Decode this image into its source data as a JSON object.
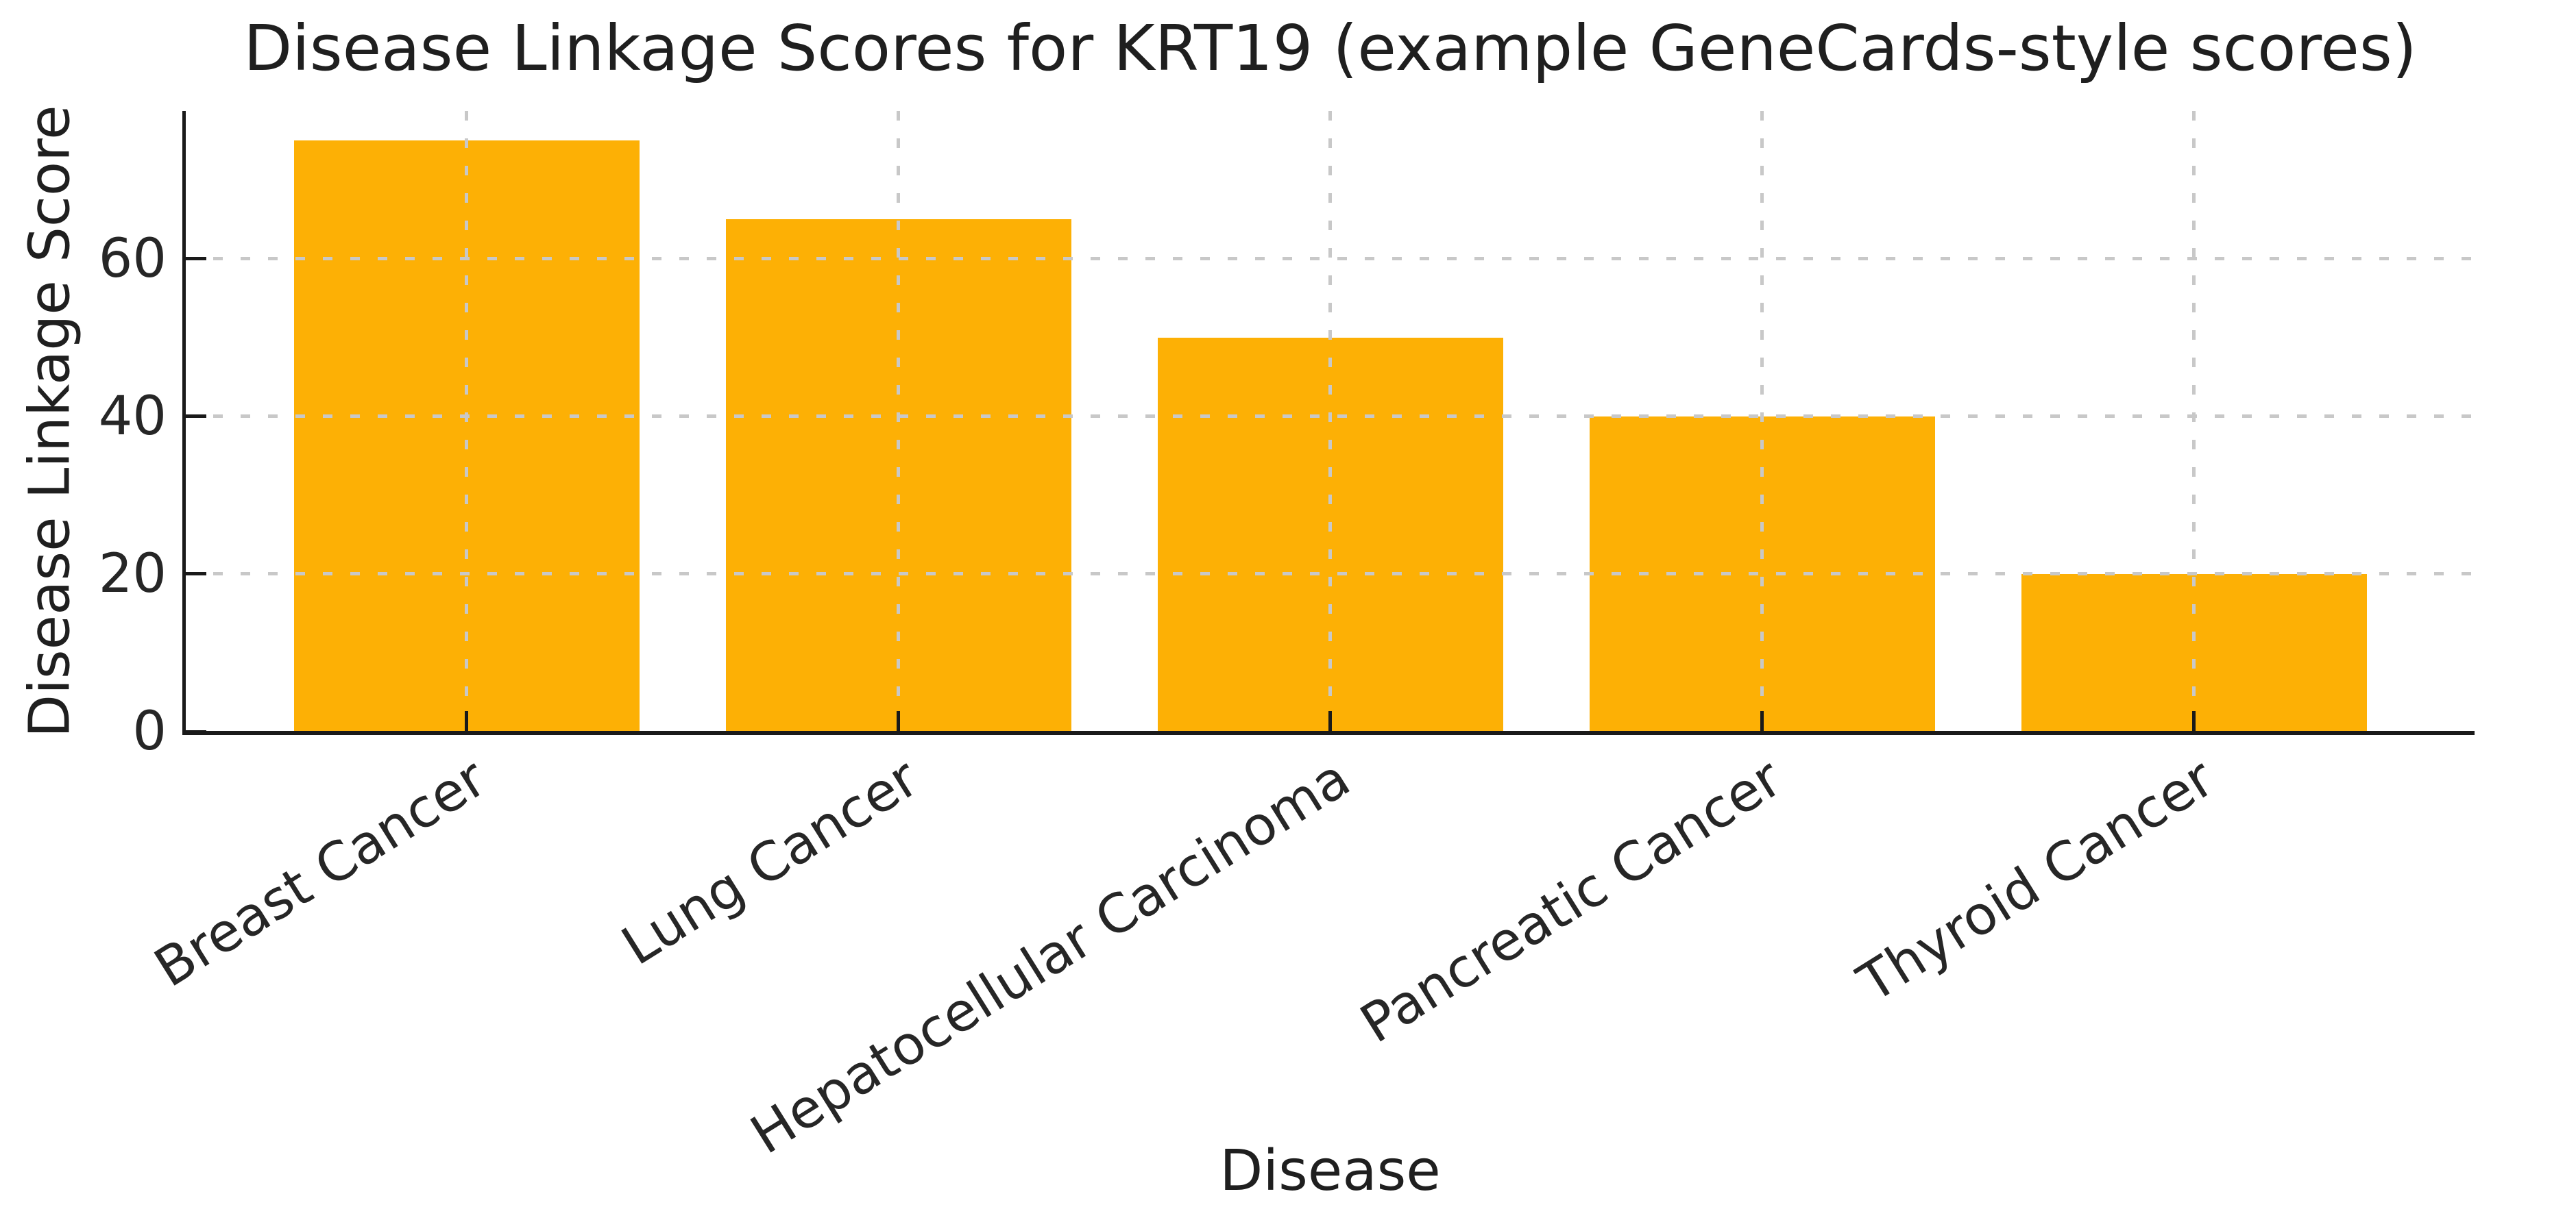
{
  "chart_data": {
    "type": "bar",
    "title": "Disease Linkage Scores for KRT19 (example GeneCards-style scores)",
    "xlabel": "Disease",
    "ylabel": "Disease Linkage Score",
    "categories": [
      "Breast Cancer",
      "Lung Cancer",
      "Hepatocellular Carcinoma",
      "Pancreatic Cancer",
      "Thyroid Cancer"
    ],
    "values": [
      75,
      65,
      50,
      40,
      20
    ],
    "yticks": [
      0,
      20,
      40,
      60
    ],
    "ylim": [
      0,
      78.75
    ],
    "xlim": [
      -0.65,
      4.65
    ],
    "bar_width_units": 0.8,
    "bar_color": "#FDB005",
    "grid_color": "#c8c8c8",
    "axis_color": "#1a1a1a",
    "text_color": "#262626",
    "grid_style": "dashed",
    "grid_axes": "both",
    "grid_above_bars": true,
    "spines_visible": [
      "left",
      "bottom"
    ],
    "tick_direction": "in",
    "xtick_rotation_deg": 32,
    "legend": "none"
  }
}
